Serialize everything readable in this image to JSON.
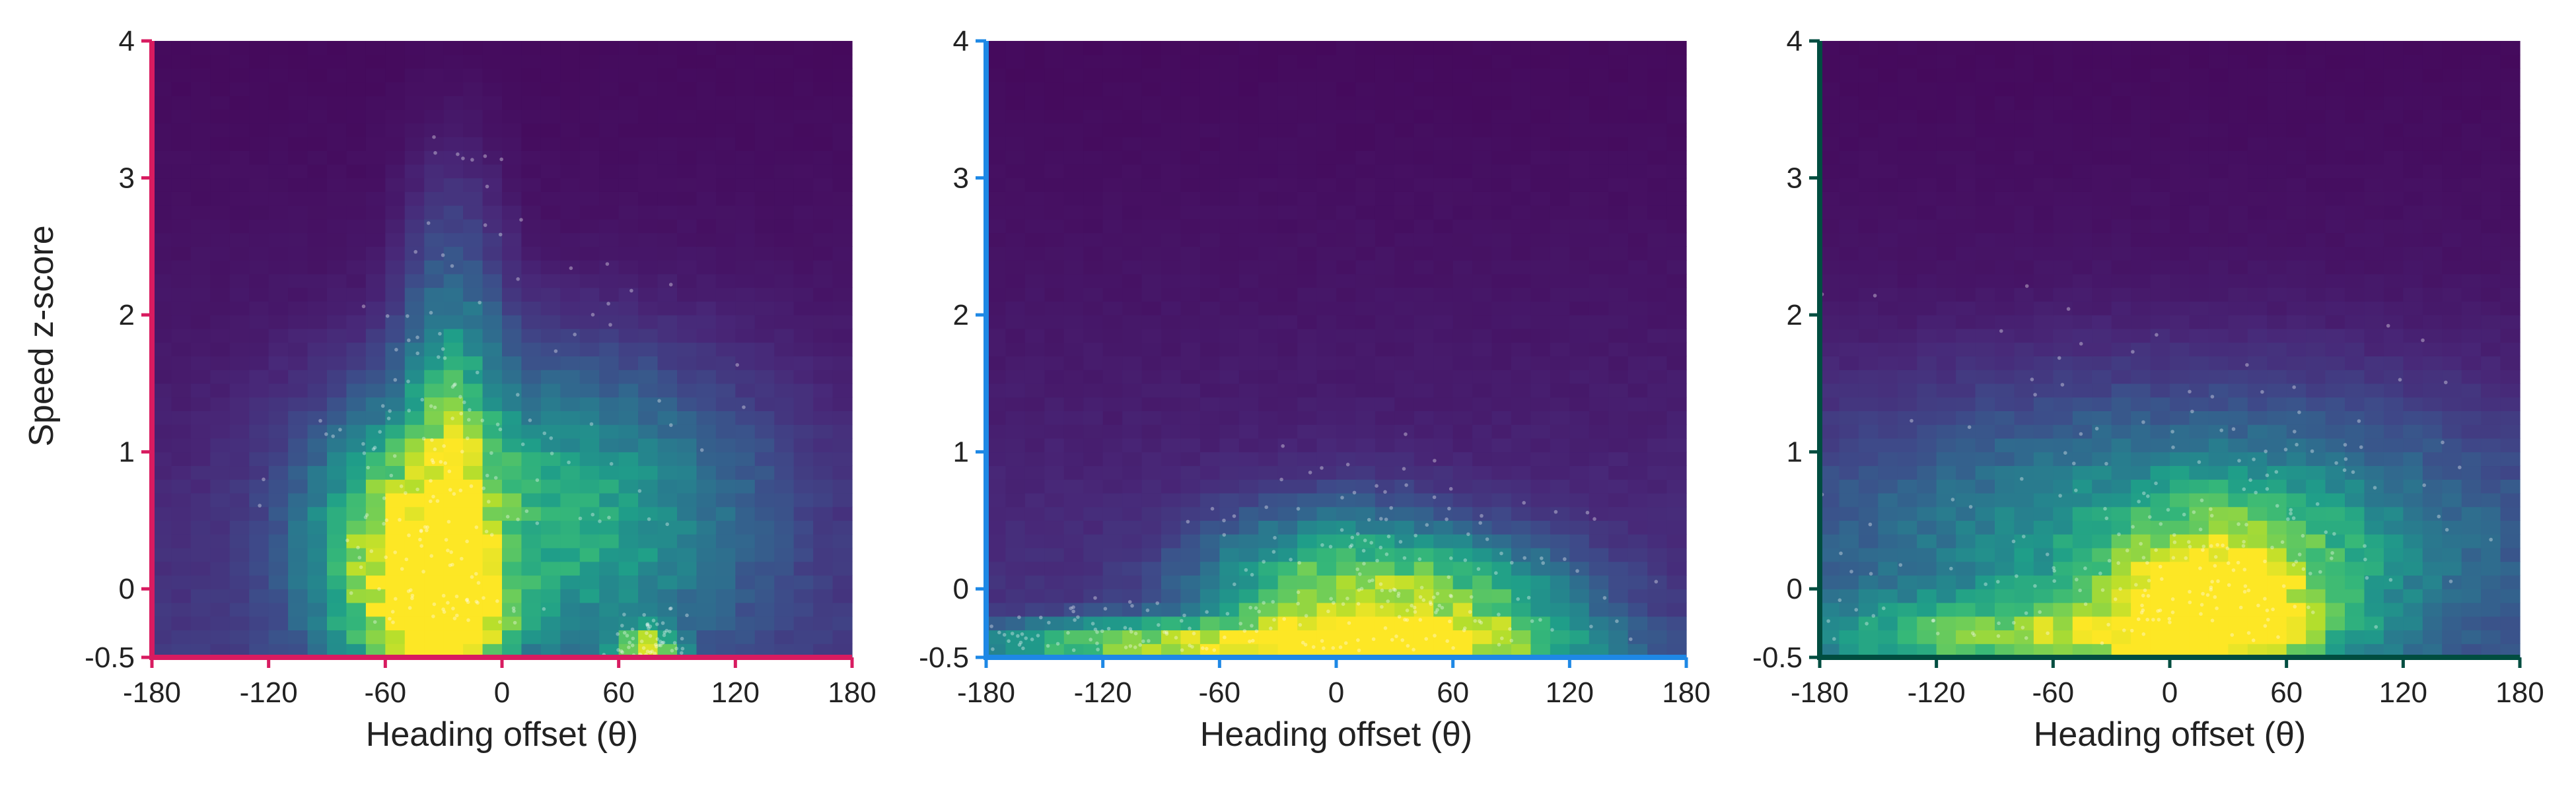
{
  "figure": {
    "colormap": "viridis",
    "colors": {
      "panel_1_axis": "#d81b60",
      "panel_2_axis": "#1e88e5",
      "panel_3_axis": "#004d40",
      "text": "#222222",
      "points": "#ffffff"
    }
  },
  "chart_data": [
    {
      "type": "heatmap",
      "title": "",
      "xlabel": "Heading offset (θ)",
      "ylabel": "Speed z-score",
      "xlim": [
        -180,
        180
      ],
      "ylim": [
        -0.5,
        4
      ],
      "xticks": [
        "-180",
        "-120",
        "-60",
        "0",
        "60",
        "120",
        "180"
      ],
      "yticks": [
        "-0.5",
        "0",
        "1",
        "2",
        "3",
        "4"
      ],
      "axis_color": "#d81b60",
      "bins": {
        "x": 36,
        "y": 45
      },
      "density_peaks": [
        {
          "x": -50,
          "y": 0.2,
          "spread_x": 25,
          "spread_y": 0.5,
          "weight": 0.9
        },
        {
          "x": -25,
          "y": 0.5,
          "spread_x": 15,
          "spread_y": 0.9,
          "weight": 0.7
        },
        {
          "x": -30,
          "y": -0.2,
          "spread_x": 20,
          "spread_y": 0.2,
          "weight": 1.0
        },
        {
          "x": 75,
          "y": -0.45,
          "spread_x": 10,
          "spread_y": 0.1,
          "weight": 0.9
        },
        {
          "x": 20,
          "y": 0.5,
          "spread_x": 60,
          "spread_y": 0.6,
          "weight": 0.4
        }
      ]
    },
    {
      "type": "heatmap",
      "title": "",
      "xlabel": "Heading offset (θ)",
      "ylabel": "",
      "xlim": [
        -180,
        180
      ],
      "ylim": [
        -0.5,
        4
      ],
      "xticks": [
        "-180",
        "-120",
        "-60",
        "0",
        "60",
        "120",
        "180"
      ],
      "yticks": [
        "-0.5",
        "0",
        "1",
        "2",
        "3",
        "4"
      ],
      "axis_color": "#1e88e5",
      "bins": {
        "x": 36,
        "y": 45
      },
      "density_peaks": [
        {
          "x": 10,
          "y": -0.4,
          "spread_x": 60,
          "spread_y": 0.12,
          "weight": 1.0
        },
        {
          "x": 0,
          "y": -0.1,
          "spread_x": 40,
          "spread_y": 0.35,
          "weight": 0.6
        },
        {
          "x": 60,
          "y": -0.2,
          "spread_x": 40,
          "spread_y": 0.3,
          "weight": 0.5
        },
        {
          "x": -100,
          "y": -0.4,
          "spread_x": 60,
          "spread_y": 0.1,
          "weight": 0.5
        }
      ]
    },
    {
      "type": "heatmap",
      "title": "",
      "xlabel": "Heading offset (θ)",
      "ylabel": "",
      "xlim": [
        -180,
        180
      ],
      "ylim": [
        -0.5,
        4
      ],
      "xticks": [
        "-180",
        "-120",
        "-60",
        "0",
        "60",
        "120",
        "180"
      ],
      "yticks": [
        "-0.5",
        "0",
        "1",
        "2",
        "3",
        "4"
      ],
      "axis_color": "#004d40",
      "bins": {
        "x": 36,
        "y": 45
      },
      "density_peaks": [
        {
          "x": 20,
          "y": -0.2,
          "spread_x": 30,
          "spread_y": 0.25,
          "weight": 1.0
        },
        {
          "x": 30,
          "y": 0.1,
          "spread_x": 45,
          "spread_y": 0.4,
          "weight": 0.6
        },
        {
          "x": -60,
          "y": -0.35,
          "spread_x": 70,
          "spread_y": 0.2,
          "weight": 0.6
        },
        {
          "x": 0,
          "y": 0.3,
          "spread_x": 110,
          "spread_y": 0.6,
          "weight": 0.25
        }
      ]
    }
  ]
}
